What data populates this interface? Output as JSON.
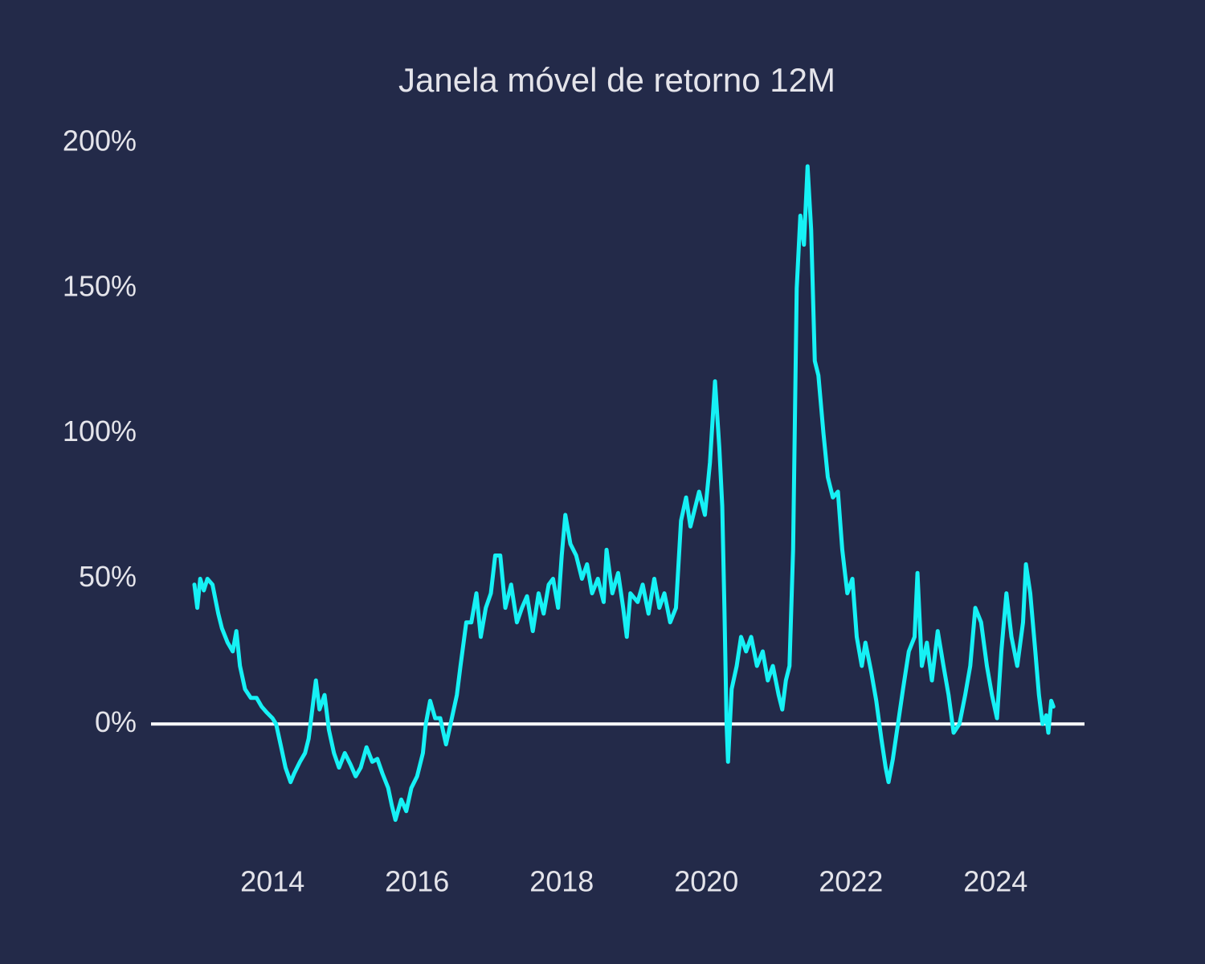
{
  "chart_data": {
    "type": "line",
    "title": "Janela móvel de retorno 12M",
    "x": [
      2012.92,
      2012.96,
      2013.0,
      2013.05,
      2013.1,
      2013.17,
      2013.25,
      2013.3,
      2013.38,
      2013.45,
      2013.5,
      2013.55,
      2013.62,
      2013.7,
      2013.78,
      2013.85,
      2013.92,
      2014.0,
      2014.05,
      2014.12,
      2014.18,
      2014.25,
      2014.3,
      2014.38,
      2014.45,
      2014.5,
      2014.55,
      2014.6,
      2014.65,
      2014.72,
      2014.78,
      2014.85,
      2014.92,
      2015.0,
      2015.08,
      2015.15,
      2015.22,
      2015.3,
      2015.38,
      2015.45,
      2015.52,
      2015.6,
      2015.65,
      2015.7,
      2015.78,
      2015.85,
      2015.92,
      2016.0,
      2016.08,
      2016.12,
      2016.18,
      2016.25,
      2016.32,
      2016.4,
      2016.48,
      2016.55,
      2016.6,
      2016.68,
      2016.75,
      2016.82,
      2016.88,
      2016.95,
      2017.02,
      2017.08,
      2017.15,
      2017.22,
      2017.3,
      2017.38,
      2017.45,
      2017.52,
      2017.6,
      2017.68,
      2017.75,
      2017.82,
      2017.88,
      2017.95,
      2018.0,
      2018.05,
      2018.12,
      2018.2,
      2018.28,
      2018.35,
      2018.42,
      2018.5,
      2018.58,
      2018.62,
      2018.7,
      2018.78,
      2018.85,
      2018.9,
      2018.95,
      2019.05,
      2019.12,
      2019.2,
      2019.28,
      2019.35,
      2019.42,
      2019.5,
      2019.58,
      2019.65,
      2019.72,
      2019.78,
      2019.85,
      2019.9,
      2019.98,
      2020.05,
      2020.12,
      2020.18,
      2020.22,
      2020.25,
      2020.28,
      2020.3,
      2020.35,
      2020.42,
      2020.48,
      2020.55,
      2020.62,
      2020.7,
      2020.78,
      2020.85,
      2020.92,
      2021.0,
      2021.05,
      2021.1,
      2021.15,
      2021.2,
      2021.25,
      2021.3,
      2021.35,
      2021.4,
      2021.45,
      2021.5,
      2021.55,
      2021.62,
      2021.68,
      2021.75,
      2021.82,
      2021.88,
      2021.95,
      2022.02,
      2022.08,
      2022.15,
      2022.2,
      2022.28,
      2022.35,
      2022.42,
      2022.48,
      2022.52,
      2022.58,
      2022.65,
      2022.72,
      2022.8,
      2022.88,
      2022.92,
      2022.98,
      2023.05,
      2023.12,
      2023.2,
      2023.28,
      2023.35,
      2023.42,
      2023.5,
      2023.58,
      2023.65,
      2023.72,
      2023.8,
      2023.88,
      2023.95,
      2024.02,
      2024.08,
      2024.15,
      2024.22,
      2024.3,
      2024.38,
      2024.42,
      2024.48,
      2024.55,
      2024.6,
      2024.65,
      2024.7,
      2024.73,
      2024.77,
      2024.8
    ],
    "values": [
      48,
      40,
      50,
      46,
      50,
      48,
      38,
      33,
      28,
      25,
      32,
      20,
      12,
      9,
      9,
      6,
      4,
      2,
      0,
      -8,
      -15,
      -20,
      -17,
      -13,
      -10,
      -5,
      5,
      15,
      5,
      10,
      -2,
      -10,
      -15,
      -10,
      -14,
      -18,
      -15,
      -8,
      -13,
      -12,
      -17,
      -22,
      -28,
      -33,
      -26,
      -30,
      -22,
      -18,
      -10,
      0,
      8,
      2,
      2,
      -7,
      2,
      10,
      20,
      35,
      35,
      45,
      30,
      40,
      45,
      58,
      58,
      40,
      48,
      35,
      40,
      44,
      32,
      45,
      38,
      48,
      50,
      40,
      58,
      72,
      62,
      58,
      50,
      55,
      45,
      50,
      42,
      60,
      45,
      52,
      40,
      30,
      45,
      42,
      48,
      38,
      50,
      40,
      45,
      35,
      40,
      70,
      78,
      68,
      75,
      80,
      72,
      90,
      118,
      95,
      75,
      40,
      0,
      -13,
      12,
      20,
      30,
      25,
      30,
      20,
      25,
      15,
      20,
      10,
      5,
      15,
      20,
      60,
      150,
      175,
      165,
      192,
      170,
      125,
      120,
      100,
      85,
      78,
      80,
      60,
      45,
      50,
      30,
      20,
      28,
      18,
      8,
      -5,
      -15,
      -20,
      -12,
      0,
      12,
      25,
      30,
      52,
      20,
      28,
      15,
      32,
      20,
      10,
      -3,
      0,
      10,
      20,
      40,
      35,
      20,
      10,
      2,
      25,
      45,
      30,
      20,
      35,
      55,
      45,
      25,
      10,
      0,
      3,
      -3,
      8,
      6
    ],
    "color": "#16f1f5",
    "xlim": [
      2012.32,
      2025.23
    ],
    "xticks": [
      2014,
      2016,
      2018,
      2020,
      2022,
      2024
    ],
    "ylim": [
      -45,
      205
    ],
    "yticks": [
      {
        "value": 0,
        "label": "0%"
      },
      {
        "value": 50,
        "label": "50%"
      },
      {
        "value": 100,
        "label": "100%"
      },
      {
        "value": 150,
        "label": "150%"
      },
      {
        "value": 200,
        "label": "200%"
      }
    ],
    "reference_line": {
      "value": 0,
      "color": "#ffffff"
    },
    "grid": false
  }
}
